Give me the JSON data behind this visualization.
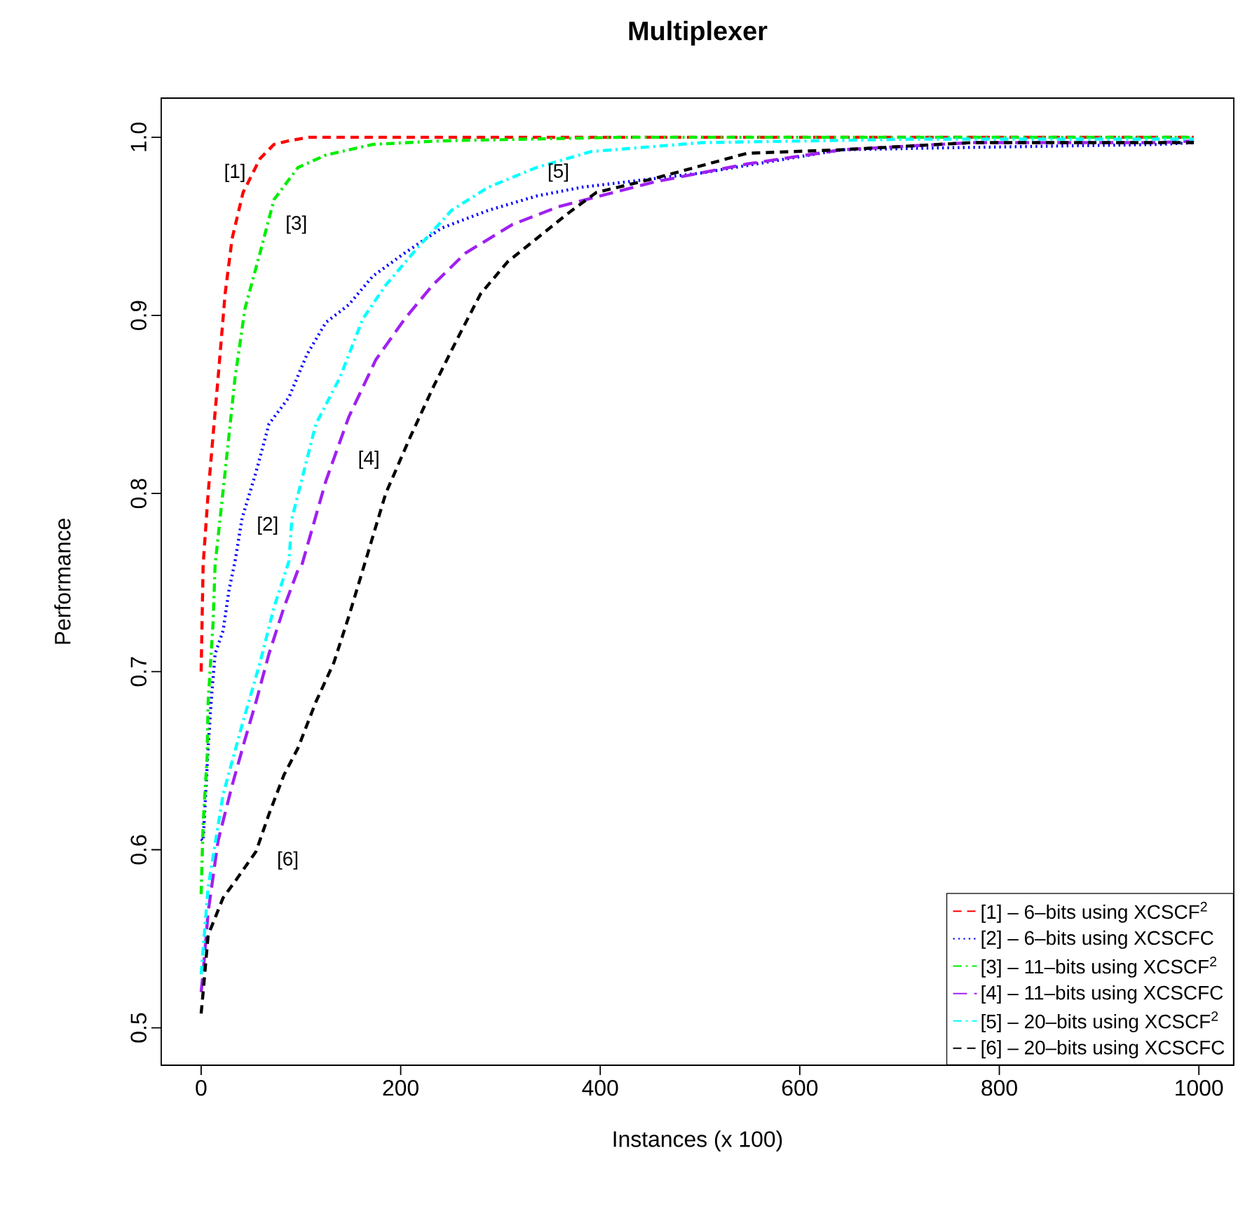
{
  "chart_data": {
    "type": "line",
    "title": "Multiplexer",
    "xlabel": "Instances (x 100)",
    "ylabel": "Performance",
    "xlim": [
      -40,
      1035
    ],
    "ylim": [
      0.479,
      1.022
    ],
    "xticks": [
      0,
      200,
      400,
      600,
      800,
      1000
    ],
    "yticks": [
      0.5,
      0.6,
      0.7,
      0.8,
      0.9,
      {
        "value": 1,
        "label": "1.0"
      }
    ],
    "legend": "bottom right",
    "series": [
      {
        "name": "[1] – 6–bits using XCSCF$^{2}$",
        "color": "#ff0000",
        "line_style": "dashed",
        "x": [
          0,
          2,
          7,
          12,
          17,
          24,
          31,
          42,
          59,
          73,
          88,
          108,
          180,
          360,
          600,
          840,
          995
        ],
        "values": [
          0.7,
          0.76,
          0.8,
          0.833,
          0.865,
          0.912,
          0.943,
          0.969,
          0.988,
          0.996,
          0.998,
          1.0,
          1.0,
          1.0,
          1.0,
          1.0,
          1.0
        ]
      },
      {
        "name": "[2] – 6–bits using XCSCFC",
        "color": "#0000ff",
        "line_style": "dotted",
        "x": [
          0,
          2,
          7,
          10,
          14,
          22,
          28,
          34,
          41,
          55,
          68,
          88,
          106,
          125,
          148,
          172,
          204,
          241,
          288,
          336,
          382,
          502,
          642,
          736,
          960,
          995
        ],
        "values": [
          0.606,
          0.605,
          0.657,
          0.683,
          0.71,
          0.723,
          0.746,
          0.762,
          0.786,
          0.812,
          0.839,
          0.854,
          0.878,
          0.896,
          0.906,
          0.922,
          0.935,
          0.949,
          0.959,
          0.967,
          0.972,
          0.98,
          0.993,
          0.994,
          0.996,
          0.997
        ]
      },
      {
        "name": "[3] – 11–bits using XCSCF$^{2}$",
        "color": "#00ee00",
        "line_style": "dashdot",
        "x": [
          0,
          2,
          6,
          7,
          12,
          14,
          24,
          34,
          44,
          59,
          73,
          97,
          125,
          172,
          241,
          420,
          720,
          995
        ],
        "values": [
          0.575,
          0.615,
          0.652,
          0.683,
          0.728,
          0.76,
          0.812,
          0.865,
          0.904,
          0.935,
          0.965,
          0.983,
          0.99,
          0.996,
          0.998,
          1.0,
          1.0,
          1.0
        ]
      },
      {
        "name": "[4] – 11–bits using XCSCFC",
        "color": "#a020f0",
        "line_style": "longdash",
        "x": [
          0,
          2,
          7,
          17,
          31,
          44,
          55,
          68,
          83,
          97,
          101,
          125,
          148,
          175,
          204,
          232,
          265,
          312,
          358,
          455,
          547,
          642,
          772,
          960,
          995
        ],
        "values": [
          0.52,
          0.531,
          0.565,
          0.605,
          0.636,
          0.662,
          0.683,
          0.71,
          0.736,
          0.757,
          0.76,
          0.807,
          0.843,
          0.875,
          0.898,
          0.917,
          0.935,
          0.951,
          0.961,
          0.975,
          0.985,
          0.993,
          0.997,
          0.997,
          0.998
        ]
      },
      {
        "name": "[5] – 20–bits using XCSCF$^{2}$",
        "color": "#00ffff",
        "line_style": "dashdot",
        "x": [
          0,
          7,
          22,
          41,
          59,
          73,
          88,
          91,
          115,
          139,
          162,
          185,
          217,
          251,
          288,
          336,
          391,
          502,
          720,
          995
        ],
        "values": [
          0.53,
          0.579,
          0.631,
          0.67,
          0.705,
          0.736,
          0.762,
          0.786,
          0.839,
          0.865,
          0.898,
          0.917,
          0.938,
          0.959,
          0.972,
          0.983,
          0.992,
          0.997,
          0.999,
          0.999
        ]
      },
      {
        "name": "[6] – 20–bits using XCSCFC",
        "color": "#000000",
        "line_style": "dashed",
        "x": [
          0,
          2,
          7,
          22,
          35,
          55,
          68,
          83,
          97,
          115,
          133,
          148,
          162,
          185,
          209,
          232,
          256,
          280,
          307,
          336,
          367,
          396,
          455,
          547,
          642,
          772,
          960,
          995
        ],
        "values": [
          0.508,
          0.52,
          0.552,
          0.573,
          0.583,
          0.599,
          0.62,
          0.642,
          0.657,
          0.683,
          0.705,
          0.731,
          0.757,
          0.8,
          0.831,
          0.859,
          0.886,
          0.912,
          0.93,
          0.943,
          0.957,
          0.969,
          0.977,
          0.991,
          0.993,
          0.997,
          0.997,
          0.997
        ]
      }
    ],
    "annotations": [
      {
        "text": "[1]",
        "x": 52,
        "y": 0.98
      },
      {
        "text": "[2]",
        "x": 40,
        "y": 0.782
      },
      {
        "text": "[3]",
        "x": 66,
        "y": 0.951
      },
      {
        "text": "[4]",
        "x": 133,
        "y": 0.819
      },
      {
        "text": "[5]",
        "x": 358,
        "y": 0.987
      },
      {
        "text": "[6]",
        "x": 49,
        "y": 0.594
      }
    ]
  }
}
